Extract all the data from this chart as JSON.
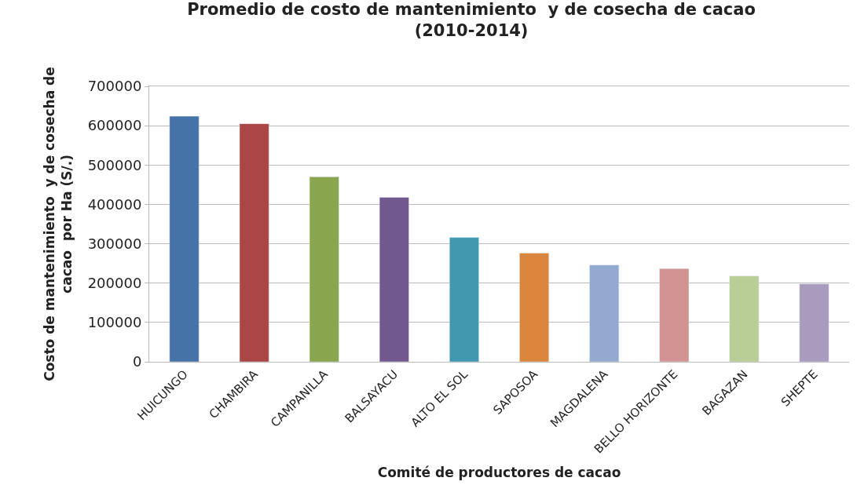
{
  "chart_data": {
    "type": "bar",
    "title": "Promedio de costo de mantenimiento  y de cosecha de cacao\n(2010-2014)",
    "xlabel": "Comité de productores de cacao",
    "ylabel": "Costo de mantenimiento  y de cosecha de\ncacao  por Ha (S/.)",
    "categories": [
      "HUICUNGO",
      "CHAMBIRA",
      "CAMPANILLA",
      "BALSAYACU",
      "ALTO EL SOL",
      "SAPOSOA",
      "MAGDALENA",
      "BELLO HORIZONTE",
      "BAGAZAN",
      "SHEPTE"
    ],
    "values": [
      624000,
      605000,
      470000,
      418000,
      316000,
      276000,
      246000,
      237000,
      218000,
      198000
    ],
    "colors": [
      "#4572a7",
      "#aa4643",
      "#89a54e",
      "#71588f",
      "#4198af",
      "#db843d",
      "#93a9cf",
      "#d19392",
      "#b9cd96",
      "#a99bbd"
    ],
    "ylim": [
      0,
      700000
    ],
    "yticks": [
      0,
      100000,
      200000,
      300000,
      400000,
      500000,
      600000,
      700000
    ],
    "grid": "y"
  }
}
